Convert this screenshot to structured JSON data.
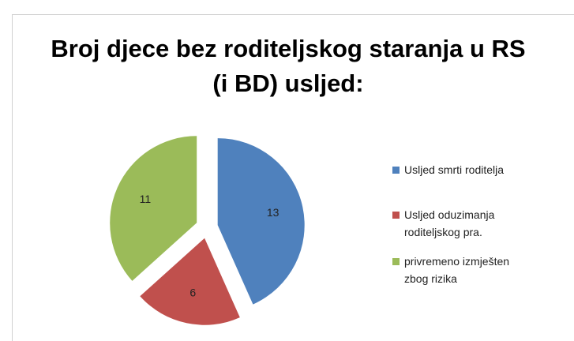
{
  "chart_data": {
    "type": "pie",
    "title": "Broj djece bez roditeljskog staranja u RS (i BD) usljed:",
    "categories": [
      "Usljed smrti roditelja",
      "Usljed oduzimanja roditeljskog pra.",
      "privremeno izmješten zbog rizika"
    ],
    "values": [
      13,
      6,
      11
    ],
    "colors": [
      "#4f81bd",
      "#c0504d",
      "#9bbb59"
    ],
    "legend": "right"
  }
}
